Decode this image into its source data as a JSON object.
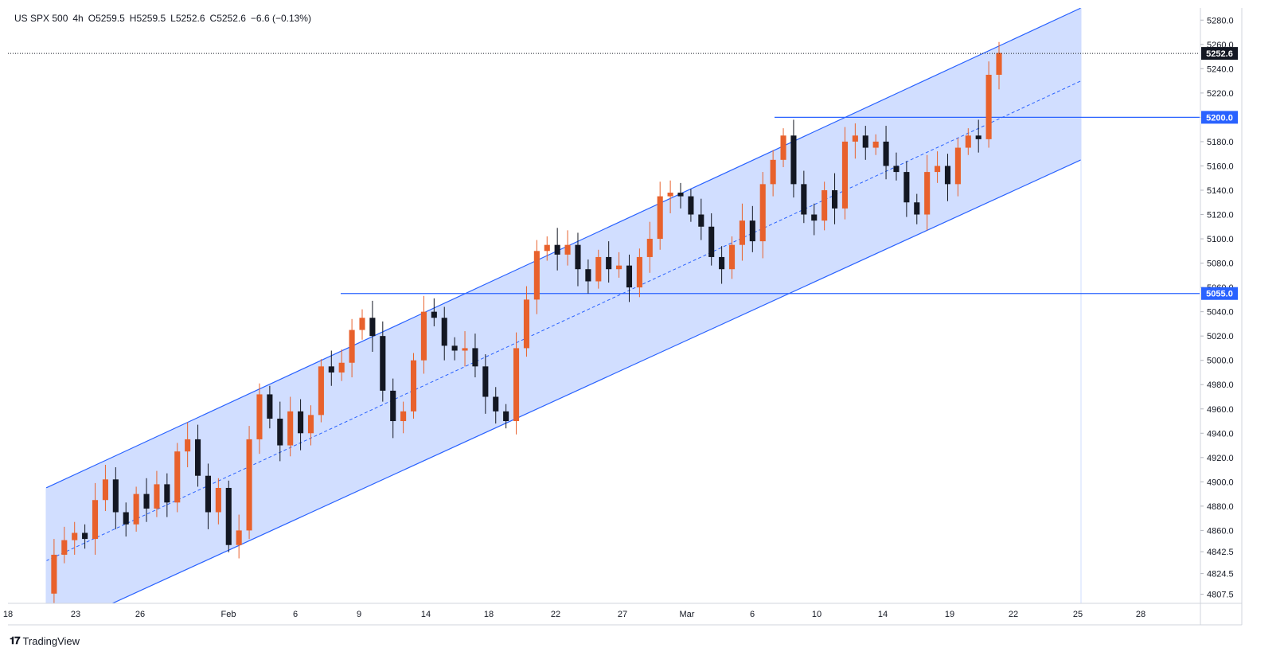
{
  "legend": {
    "symbol": "US SPX 500",
    "interval": "4h",
    "open": "O5259.5",
    "high": "H5259.5",
    "low": "L5252.6",
    "close": "C5252.6",
    "change": "−6.6 (−0.13%)"
  },
  "branding": {
    "logo": "𝟏𝟕",
    "name": "TradingView"
  },
  "colors": {
    "up": "#e8612c",
    "down": "#131722",
    "channel_line": "#2962ff",
    "channel_fill": "#cfdcff",
    "axis_text": "#131722",
    "grid": "#f0f3fa"
  },
  "chart_data": {
    "type": "candlestick",
    "y_axis": {
      "ticks": [
        "5280.0",
        "5260.0",
        "5240.0",
        "5220.0",
        "5200.0",
        "5180.0",
        "5160.0",
        "5140.0",
        "5120.0",
        "5100.0",
        "5080.0",
        "5060.0",
        "5040.0",
        "5020.0",
        "5000.0",
        "4980.0",
        "4960.0",
        "4940.0",
        "4920.0",
        "4900.0",
        "4880.0",
        "4860.0",
        "4842.5",
        "4824.5",
        "4807.5"
      ],
      "range": [
        4800,
        5290
      ]
    },
    "x_axis": {
      "labels": [
        "18",
        "23",
        "26",
        "Feb",
        "6",
        "9",
        "14",
        "18",
        "22",
        "27",
        "Mar",
        "6",
        "10",
        "14",
        "19",
        "22",
        "25",
        "28"
      ]
    },
    "current_price": {
      "value": 5252.6,
      "label": "5252.6"
    },
    "levels": [
      {
        "value": 5200.0,
        "label": "5200.0"
      },
      {
        "value": 5055.0,
        "label": "5055.0"
      }
    ],
    "channel": {
      "upper": [
        [
          0,
          4895
        ],
        [
          1,
          5290
        ]
      ],
      "mid": [
        [
          0,
          4835
        ],
        [
          1,
          5230
        ]
      ],
      "lower": [
        [
          0,
          4775
        ],
        [
          1,
          5165
        ]
      ]
    },
    "candles_path": [
      4808,
      4840,
      4852,
      4858,
      4853,
      4885,
      4902,
      4875,
      4865,
      4890,
      4878,
      4898,
      4883,
      4925,
      4935,
      4905,
      4875,
      4895,
      4848,
      4860,
      4935,
      4972,
      4952,
      4930,
      4958,
      4940,
      4955,
      4995,
      4990,
      4998,
      5025,
      5035,
      5020,
      4975,
      4950,
      4958,
      5000,
      5040,
      5035,
      5012,
      5008,
      5010,
      4995,
      4970,
      4958,
      4950,
      5010,
      5050,
      5090,
      5095,
      5087,
      5095,
      5075,
      5065,
      5085,
      5075,
      5078,
      5060,
      5085,
      5100,
      5135,
      5138,
      5135,
      5120,
      5110,
      5085,
      5075,
      5095,
      5115,
      5098,
      5145,
      5165,
      5185,
      5145,
      5120,
      5115,
      5140,
      5125,
      5180,
      5185,
      5175,
      5180,
      5160,
      5155,
      5130,
      5120,
      5155,
      5160,
      5145,
      5175,
      5185,
      5182,
      5235,
      5253
    ]
  }
}
